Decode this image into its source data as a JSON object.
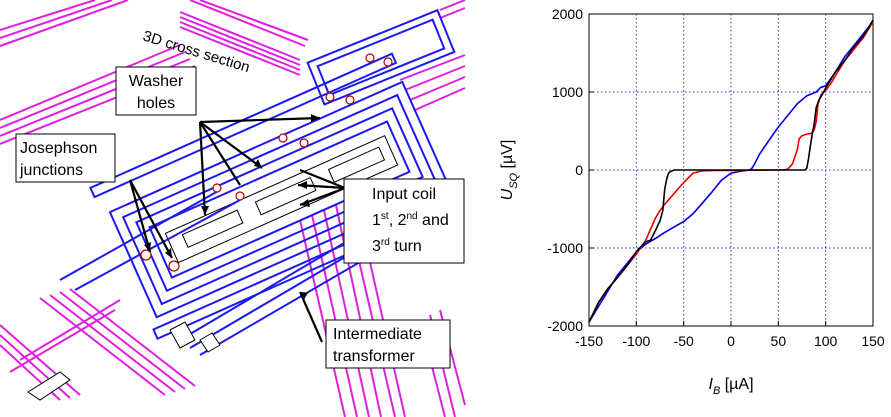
{
  "left_panel": {
    "cross_section_label": "3D cross section",
    "washer_label": [
      "Washer",
      "holes"
    ],
    "josephson_label": [
      "Josephson",
      "junctions"
    ],
    "input_coil_label": {
      "line1": "Input coil",
      "line2_parts": [
        "1",
        "st",
        ", 2",
        "nd",
        " and"
      ],
      "line3_parts": [
        "3",
        "rd",
        " turn"
      ]
    },
    "intermediate_label": [
      "Intermediate",
      "transformer"
    ]
  },
  "chart_data": {
    "type": "line",
    "xlabel_main": "I",
    "xlabel_sub": "B",
    "xlabel_unit": " [µA]",
    "ylabel_main": "U",
    "ylabel_sub": "SQ",
    "ylabel_unit": " [µV]",
    "xlim": [
      -150,
      150
    ],
    "ylim": [
      -2000,
      2000
    ],
    "xticks": [
      -150,
      -100,
      -50,
      0,
      50,
      100,
      150
    ],
    "yticks": [
      -2000,
      -1000,
      0,
      1000,
      2000
    ],
    "grid": true,
    "series": [
      {
        "color": "#0000ee",
        "x": [
          -150,
          -140,
          -130,
          -120,
          -110,
          -100,
          -90,
          -80,
          -70,
          -60,
          -50,
          -40,
          -30,
          -20,
          -10,
          0,
          10,
          20,
          22,
          25,
          30,
          40,
          50,
          60,
          70,
          80,
          90,
          95,
          100,
          110,
          120,
          130,
          140,
          150
        ],
        "y": [
          -1950,
          -1750,
          -1550,
          -1350,
          -1200,
          -1050,
          -950,
          -880,
          -800,
          -730,
          -660,
          -560,
          -420,
          -280,
          -130,
          -40,
          -15,
          0,
          20,
          80,
          200,
          380,
          550,
          700,
          850,
          950,
          1000,
          1060,
          1080,
          1250,
          1450,
          1600,
          1750,
          1900
        ]
      },
      {
        "color": "#ee0000",
        "x": [
          -150,
          -140,
          -130,
          -120,
          -110,
          -100,
          -90,
          -85,
          -80,
          -75,
          -70,
          -60,
          -50,
          -40,
          -30,
          -20,
          -10,
          0,
          10,
          20,
          30,
          40,
          50,
          55,
          60,
          65,
          70,
          72,
          75,
          80,
          85,
          88,
          90,
          92,
          95,
          100,
          105,
          110,
          120,
          130,
          140,
          150
        ],
        "y": [
          -1950,
          -1700,
          -1520,
          -1380,
          -1230,
          -1080,
          -900,
          -760,
          -620,
          -520,
          -440,
          -300,
          -160,
          -40,
          -10,
          -8,
          -6,
          -5,
          -4,
          -3,
          -2,
          -1,
          0,
          0,
          10,
          80,
          260,
          400,
          440,
          460,
          470,
          520,
          620,
          850,
          960,
          1020,
          1100,
          1200,
          1400,
          1550,
          1700,
          1900
        ]
      },
      {
        "color": "#000000",
        "x": [
          -150,
          -140,
          -130,
          -120,
          -110,
          -100,
          -95,
          -90,
          -85,
          -80,
          -75,
          -72,
          -70,
          -68,
          -66,
          -64,
          -62,
          -60,
          -40,
          -20,
          0,
          20,
          40,
          60,
          70,
          78,
          80,
          82,
          84,
          86,
          88,
          90,
          93,
          96,
          100,
          105,
          110,
          120,
          130,
          140,
          150
        ],
        "y": [
          -1950,
          -1700,
          -1520,
          -1380,
          -1230,
          -1050,
          -980,
          -920,
          -900,
          -780,
          -650,
          -520,
          -250,
          -120,
          -40,
          -20,
          -10,
          0,
          0,
          0,
          0,
          0,
          0,
          0,
          0,
          0,
          20,
          150,
          320,
          470,
          600,
          800,
          900,
          960,
          1050,
          1150,
          1250,
          1400,
          1580,
          1720,
          1920
        ]
      }
    ]
  }
}
